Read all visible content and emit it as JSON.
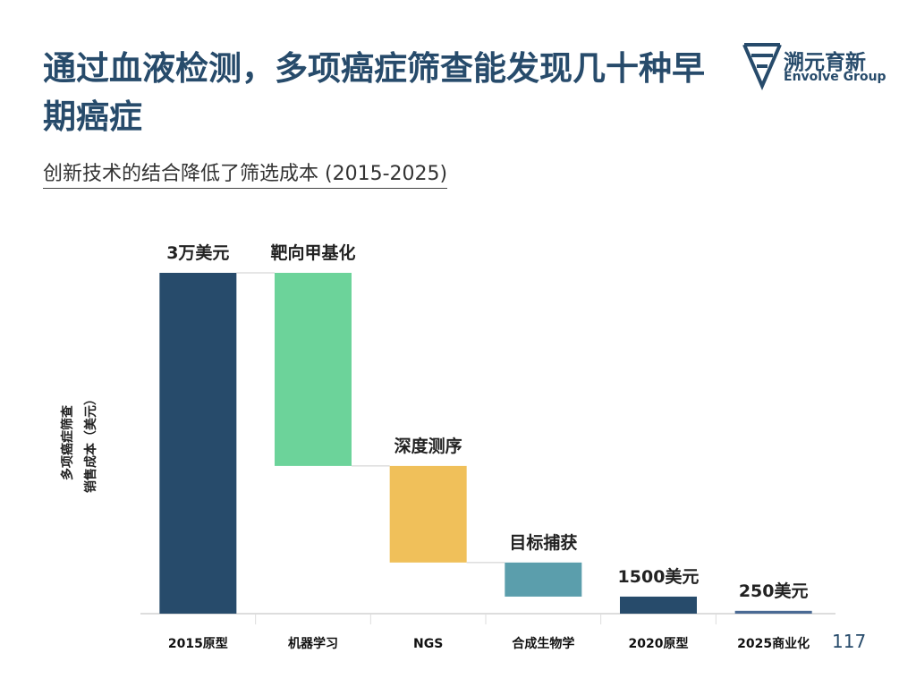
{
  "header": {
    "title": "通过血液检测，多项癌症筛查能发现几十种早期癌症",
    "subtitle": "创新技术的结合降低了筛选成本 (2015-2025)",
    "logo": "溯元育新",
    "logo_sub": "Envolve Group"
  },
  "page_number": "117",
  "chart_data": {
    "type": "waterfall",
    "categories": [
      "2015原型",
      "机器学习",
      "NGS",
      "合成生物学",
      "2020原型",
      "2025商业化"
    ],
    "values": [
      30000,
      -17000,
      -8500,
      -3000,
      1500,
      250
    ],
    "measure": [
      "total",
      "relative",
      "relative",
      "relative",
      "total",
      "total"
    ],
    "value_labels": [
      "3万美元",
      null,
      null,
      null,
      "1500美元",
      "250美元"
    ],
    "annotations": [
      null,
      "靶向甲基化",
      "深度测序",
      "目标捕获",
      null,
      null
    ],
    "colors": [
      "#274b6b",
      "#6cd39a",
      "#f0c05a",
      "#5b9eac",
      "#274b6b",
      "#4a6a94"
    ],
    "y_label": [
      "多项癌症筛查",
      "销售成本（美元）"
    ],
    "ylim": [
      0,
      30000
    ]
  }
}
